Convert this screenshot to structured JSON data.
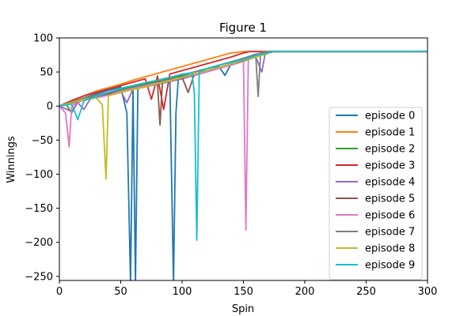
{
  "chart_data": {
    "type": "line",
    "title": "Figure 1",
    "xlabel": "Spin",
    "ylabel": "Winnings",
    "xlim": [
      0,
      300
    ],
    "ylim": [
      -256,
      100
    ],
    "xticks": [
      0,
      50,
      100,
      150,
      200,
      250,
      300
    ],
    "yticks": [
      100,
      50,
      0,
      -50,
      -100,
      -150,
      -200,
      -250
    ],
    "grid": false,
    "legend_position": "lower-right",
    "series": [
      {
        "name": "episode 0",
        "color": "#1f77b4",
        "points": [
          [
            0,
            0
          ],
          [
            10,
            5
          ],
          [
            20,
            12
          ],
          [
            30,
            18
          ],
          [
            40,
            23
          ],
          [
            50,
            28
          ],
          [
            55,
            -10
          ],
          [
            58,
            -260
          ],
          [
            60,
            25
          ],
          [
            62,
            -260
          ],
          [
            64,
            30
          ],
          [
            70,
            34
          ],
          [
            80,
            37
          ],
          [
            90,
            40
          ],
          [
            93,
            -260
          ],
          [
            95,
            -10
          ],
          [
            97,
            42
          ],
          [
            110,
            47
          ],
          [
            120,
            52
          ],
          [
            130,
            58
          ],
          [
            135,
            45
          ],
          [
            140,
            62
          ],
          [
            150,
            70
          ],
          [
            160,
            76
          ],
          [
            170,
            80
          ],
          [
            300,
            80
          ]
        ]
      },
      {
        "name": "episode 1",
        "color": "#ff7f0e",
        "points": [
          [
            0,
            0
          ],
          [
            10,
            8
          ],
          [
            20,
            15
          ],
          [
            30,
            22
          ],
          [
            40,
            27
          ],
          [
            50,
            32
          ],
          [
            60,
            38
          ],
          [
            70,
            43
          ],
          [
            80,
            48
          ],
          [
            90,
            53
          ],
          [
            100,
            58
          ],
          [
            110,
            63
          ],
          [
            120,
            68
          ],
          [
            130,
            73
          ],
          [
            140,
            78
          ],
          [
            150,
            80
          ],
          [
            160,
            80
          ],
          [
            300,
            80
          ]
        ]
      },
      {
        "name": "episode 2",
        "color": "#2ca02c",
        "points": [
          [
            0,
            0
          ],
          [
            5,
            4
          ],
          [
            10,
            -10
          ],
          [
            15,
            6
          ],
          [
            20,
            10
          ],
          [
            30,
            15
          ],
          [
            40,
            20
          ],
          [
            50,
            24
          ],
          [
            60,
            28
          ],
          [
            70,
            32
          ],
          [
            80,
            36
          ],
          [
            90,
            40
          ],
          [
            100,
            45
          ],
          [
            110,
            50
          ],
          [
            120,
            55
          ],
          [
            130,
            60
          ],
          [
            140,
            65
          ],
          [
            150,
            70
          ],
          [
            160,
            75
          ],
          [
            170,
            80
          ],
          [
            300,
            80
          ]
        ]
      },
      {
        "name": "episode 3",
        "color": "#d62728",
        "points": [
          [
            0,
            0
          ],
          [
            10,
            8
          ],
          [
            20,
            15
          ],
          [
            30,
            20
          ],
          [
            40,
            25
          ],
          [
            50,
            30
          ],
          [
            60,
            35
          ],
          [
            70,
            40
          ],
          [
            75,
            10
          ],
          [
            80,
            44
          ],
          [
            85,
            -5
          ],
          [
            90,
            47
          ],
          [
            100,
            52
          ],
          [
            110,
            57
          ],
          [
            120,
            62
          ],
          [
            130,
            67
          ],
          [
            140,
            72
          ],
          [
            150,
            78
          ],
          [
            155,
            80
          ],
          [
            300,
            80
          ]
        ]
      },
      {
        "name": "episode 4",
        "color": "#9467bd",
        "points": [
          [
            0,
            0
          ],
          [
            10,
            -8
          ],
          [
            15,
            5
          ],
          [
            20,
            -5
          ],
          [
            25,
            10
          ],
          [
            30,
            15
          ],
          [
            40,
            20
          ],
          [
            50,
            22
          ],
          [
            55,
            5
          ],
          [
            60,
            25
          ],
          [
            70,
            28
          ],
          [
            80,
            32
          ],
          [
            90,
            36
          ],
          [
            100,
            40
          ],
          [
            110,
            45
          ],
          [
            120,
            50
          ],
          [
            130,
            56
          ],
          [
            140,
            60
          ],
          [
            150,
            66
          ],
          [
            160,
            72
          ],
          [
            165,
            50
          ],
          [
            168,
            80
          ],
          [
            300,
            80
          ]
        ]
      },
      {
        "name": "episode 5",
        "color": "#8c564b",
        "points": [
          [
            0,
            0
          ],
          [
            10,
            4
          ],
          [
            20,
            9
          ],
          [
            30,
            12
          ],
          [
            40,
            18
          ],
          [
            50,
            22
          ],
          [
            60,
            26
          ],
          [
            70,
            30
          ],
          [
            80,
            33
          ],
          [
            82,
            -28
          ],
          [
            84,
            35
          ],
          [
            90,
            38
          ],
          [
            100,
            42
          ],
          [
            105,
            20
          ],
          [
            110,
            47
          ],
          [
            120,
            52
          ],
          [
            130,
            56
          ],
          [
            140,
            62
          ],
          [
            150,
            66
          ],
          [
            160,
            72
          ],
          [
            170,
            78
          ],
          [
            175,
            80
          ],
          [
            300,
            80
          ]
        ]
      },
      {
        "name": "episode 6",
        "color": "#e377c2",
        "points": [
          [
            0,
            0
          ],
          [
            5,
            -10
          ],
          [
            8,
            -60
          ],
          [
            10,
            0
          ],
          [
            15,
            5
          ],
          [
            20,
            10
          ],
          [
            30,
            12
          ],
          [
            40,
            16
          ],
          [
            50,
            22
          ],
          [
            60,
            26
          ],
          [
            70,
            30
          ],
          [
            80,
            34
          ],
          [
            90,
            38
          ],
          [
            100,
            42
          ],
          [
            110,
            46
          ],
          [
            120,
            50
          ],
          [
            130,
            55
          ],
          [
            140,
            60
          ],
          [
            150,
            68
          ],
          [
            152,
            -182
          ],
          [
            154,
            70
          ],
          [
            160,
            75
          ],
          [
            170,
            80
          ],
          [
            300,
            80
          ]
        ]
      },
      {
        "name": "episode 7",
        "color": "#7f7f7f",
        "points": [
          [
            0,
            0
          ],
          [
            10,
            6
          ],
          [
            20,
            12
          ],
          [
            30,
            16
          ],
          [
            40,
            20
          ],
          [
            50,
            26
          ],
          [
            60,
            30
          ],
          [
            70,
            34
          ],
          [
            80,
            38
          ],
          [
            90,
            42
          ],
          [
            100,
            46
          ],
          [
            110,
            50
          ],
          [
            120,
            55
          ],
          [
            130,
            60
          ],
          [
            140,
            65
          ],
          [
            150,
            70
          ],
          [
            160,
            75
          ],
          [
            162,
            14
          ],
          [
            164,
            78
          ],
          [
            170,
            80
          ],
          [
            300,
            80
          ]
        ]
      },
      {
        "name": "episode 8",
        "color": "#bcbd22",
        "points": [
          [
            0,
            0
          ],
          [
            10,
            5
          ],
          [
            20,
            10
          ],
          [
            30,
            12
          ],
          [
            35,
            2
          ],
          [
            38,
            -107
          ],
          [
            40,
            15
          ],
          [
            50,
            20
          ],
          [
            60,
            24
          ],
          [
            70,
            28
          ],
          [
            80,
            33
          ],
          [
            90,
            37
          ],
          [
            100,
            42
          ],
          [
            110,
            47
          ],
          [
            120,
            52
          ],
          [
            130,
            57
          ],
          [
            140,
            62
          ],
          [
            150,
            67
          ],
          [
            160,
            72
          ],
          [
            170,
            77
          ],
          [
            172,
            80
          ],
          [
            300,
            80
          ]
        ]
      },
      {
        "name": "episode 9",
        "color": "#17becf",
        "points": [
          [
            0,
            0
          ],
          [
            10,
            3
          ],
          [
            15,
            -20
          ],
          [
            20,
            8
          ],
          [
            30,
            14
          ],
          [
            40,
            20
          ],
          [
            50,
            26
          ],
          [
            60,
            30
          ],
          [
            70,
            34
          ],
          [
            80,
            38
          ],
          [
            90,
            42
          ],
          [
            100,
            47
          ],
          [
            108,
            49
          ],
          [
            110,
            20
          ],
          [
            112,
            -197
          ],
          [
            114,
            50
          ],
          [
            120,
            55
          ],
          [
            130,
            60
          ],
          [
            140,
            64
          ],
          [
            150,
            68
          ],
          [
            160,
            74
          ],
          [
            170,
            78
          ],
          [
            172,
            80
          ],
          [
            300,
            80
          ]
        ]
      }
    ]
  }
}
